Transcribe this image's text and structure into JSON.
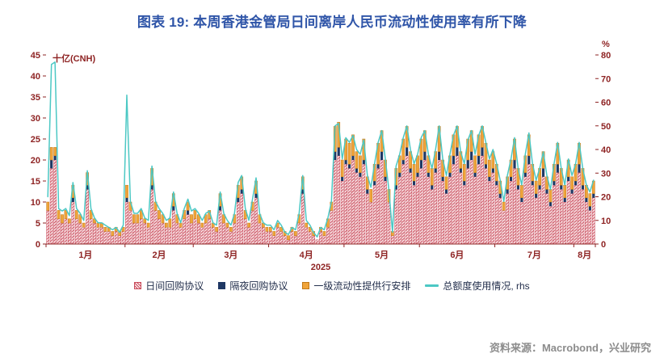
{
  "title": "图表 19: 本周香港金管局日间离岸人民币流动性使用率有所下降",
  "footer": {
    "source": "资料来源：Macrobond，兴业研究"
  },
  "chart_data": {
    "type": "bar",
    "subtype": "stacked-bar-with-line",
    "title": "图表 19: 本周香港金管局日间离岸人民币流动性使用率有所下降",
    "colors": {
      "title": "#2f55a8",
      "axis": "#8e2323",
      "source_text": "#8c8c8c"
    },
    "legend_position": "bottom",
    "grid": false,
    "left_axis": {
      "label": "十亿(CNH)",
      "min": 0,
      "max": 45,
      "ticks": [
        0,
        5,
        10,
        15,
        20,
        25,
        30,
        35,
        40,
        45
      ]
    },
    "right_axis": {
      "label": "%",
      "min": 0,
      "max": 80,
      "ticks": [
        0,
        10,
        20,
        30,
        40,
        50,
        60,
        70,
        80
      ]
    },
    "x_axis": {
      "year_label": "2025",
      "months": [
        "1月",
        "2月",
        "3月",
        "4月",
        "5月",
        "6月",
        "7月",
        "8月"
      ],
      "days_per_month": [
        22,
        19,
        21,
        21,
        21,
        21,
        22,
        6
      ]
    },
    "series": [
      {
        "name": "日间回购协议",
        "type": "bar-stack",
        "axis": "left",
        "color": "#c84a5a",
        "style": "hatched",
        "values": [
          8,
          18,
          20,
          6,
          5,
          6,
          5,
          10,
          6,
          5,
          4,
          13,
          6,
          5,
          4,
          4,
          3,
          3,
          2,
          3,
          2,
          3,
          10,
          8,
          5,
          5,
          6,
          5,
          4,
          13,
          8,
          6,
          5,
          4,
          4,
          8,
          5,
          4,
          6,
          7,
          5,
          6,
          5,
          4,
          5,
          6,
          4,
          3,
          8,
          5,
          4,
          3,
          5,
          10,
          12,
          6,
          4,
          8,
          11,
          5,
          4,
          3,
          3,
          2,
          4,
          3,
          2,
          1,
          3,
          2,
          5,
          12,
          4,
          3,
          2,
          1,
          3,
          2,
          4,
          8,
          20,
          21,
          15,
          19,
          18,
          20,
          17,
          16,
          19,
          12,
          10,
          14,
          18,
          20,
          15,
          10,
          2,
          13,
          16,
          19,
          21,
          17,
          14,
          16,
          18,
          20,
          16,
          13,
          17,
          20,
          15,
          12,
          16,
          19,
          21,
          17,
          14,
          18,
          20,
          16,
          19,
          21,
          18,
          15,
          17,
          14,
          11,
          8,
          12,
          15,
          18,
          13,
          10,
          16,
          19,
          14,
          11,
          13,
          16,
          12,
          9,
          14,
          17,
          13,
          10,
          15,
          12,
          14,
          17,
          13,
          10,
          8,
          11
        ]
      },
      {
        "name": "隔夜回购协议",
        "type": "bar-stack",
        "axis": "left",
        "color": "#1f3864",
        "values": [
          0,
          2,
          1,
          0,
          0,
          0,
          0,
          1,
          0,
          0,
          0,
          1,
          0,
          0,
          0,
          0,
          0,
          0,
          0,
          0,
          0,
          0,
          1,
          0,
          0,
          0,
          0,
          0,
          0,
          1,
          0,
          0,
          0,
          0,
          0,
          1,
          0,
          0,
          0,
          1,
          0,
          0,
          0,
          0,
          0,
          0,
          0,
          0,
          1,
          0,
          0,
          0,
          0,
          1,
          1,
          0,
          0,
          0,
          1,
          0,
          0,
          0,
          0,
          0,
          0,
          0,
          0,
          0,
          0,
          0,
          0,
          1,
          0,
          0,
          0,
          0,
          0,
          0,
          0,
          0,
          2,
          2,
          1,
          1,
          1,
          1,
          1,
          1,
          1,
          1,
          0,
          1,
          1,
          2,
          1,
          0,
          0,
          1,
          1,
          1,
          2,
          1,
          1,
          1,
          2,
          2,
          1,
          1,
          1,
          2,
          1,
          1,
          1,
          2,
          2,
          1,
          1,
          2,
          2,
          1,
          2,
          2,
          1,
          1,
          1,
          1,
          1,
          0,
          1,
          1,
          2,
          1,
          1,
          1,
          2,
          1,
          1,
          1,
          2,
          1,
          1,
          1,
          2,
          1,
          1,
          1,
          1,
          1,
          2,
          1,
          1,
          1,
          1
        ]
      },
      {
        "name": "一级流动性提供行安排",
        "type": "bar-stack",
        "axis": "left",
        "color": "#f0a43a",
        "border": "#c07818",
        "values": [
          2,
          3,
          2,
          2,
          2,
          2,
          1,
          3,
          2,
          2,
          1,
          3,
          2,
          1,
          1,
          1,
          1,
          1,
          1,
          1,
          1,
          1,
          3,
          2,
          2,
          2,
          2,
          1,
          1,
          4,
          2,
          2,
          2,
          1,
          2,
          3,
          2,
          1,
          2,
          2,
          2,
          2,
          2,
          1,
          2,
          2,
          1,
          1,
          3,
          2,
          1,
          1,
          2,
          3,
          3,
          2,
          1,
          2,
          3,
          2,
          1,
          1,
          1,
          1,
          1,
          1,
          1,
          1,
          1,
          1,
          2,
          3,
          1,
          1,
          1,
          0,
          1,
          1,
          2,
          2,
          6,
          6,
          4,
          5,
          5,
          5,
          4,
          4,
          5,
          3,
          3,
          4,
          5,
          5,
          4,
          3,
          1,
          4,
          4,
          5,
          5,
          4,
          4,
          4,
          5,
          5,
          4,
          4,
          4,
          6,
          4,
          3,
          4,
          5,
          5,
          4,
          4,
          5,
          5,
          4,
          5,
          5,
          5,
          4,
          4,
          4,
          3,
          2,
          3,
          4,
          5,
          4,
          3,
          4,
          5,
          4,
          3,
          4,
          4,
          3,
          3,
          4,
          5,
          4,
          3,
          4,
          3,
          4,
          5,
          4,
          3,
          3,
          3
        ]
      },
      {
        "name": "总额度使用情况, rhs",
        "type": "line",
        "axis": "right",
        "color": "#4cc8c4",
        "values": [
          20,
          76,
          77,
          15,
          14,
          15,
          12,
          26,
          15,
          13,
          10,
          31,
          15,
          11,
          9,
          9,
          8,
          7,
          6,
          7,
          5,
          8,
          63,
          18,
          13,
          13,
          15,
          11,
          10,
          33,
          18,
          15,
          13,
          10,
          11,
          22,
          13,
          9,
          15,
          19,
          14,
          15,
          13,
          10,
          13,
          14,
          9,
          8,
          22,
          13,
          10,
          8,
          13,
          26,
          29,
          15,
          10,
          19,
          28,
          13,
          9,
          8,
          8,
          6,
          10,
          8,
          5,
          4,
          7,
          6,
          13,
          29,
          10,
          8,
          5,
          3,
          7,
          6,
          11,
          18,
          50,
          51,
          36,
          45,
          43,
          46,
          40,
          38,
          44,
          29,
          24,
          34,
          43,
          48,
          36,
          23,
          5,
          33,
          38,
          45,
          50,
          40,
          34,
          38,
          45,
          48,
          38,
          32,
          40,
          50,
          36,
          29,
          38,
          46,
          50,
          39,
          34,
          44,
          48,
          38,
          46,
          50,
          43,
          36,
          40,
          34,
          27,
          18,
          29,
          36,
          45,
          32,
          25,
          38,
          47,
          34,
          27,
          32,
          39,
          29,
          23,
          34,
          43,
          32,
          25,
          36,
          29,
          34,
          43,
          32,
          25,
          22,
          27
        ]
      }
    ]
  }
}
